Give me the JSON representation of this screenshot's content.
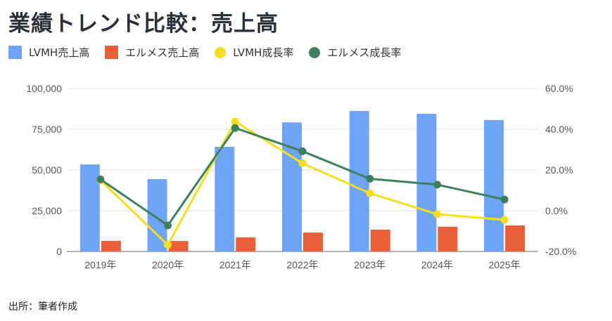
{
  "title": "業績トレンド比較：売上高",
  "source": "出所：筆者作成",
  "chart_data": {
    "type": "bar",
    "title": "業績トレンド比較：売上高",
    "categories": [
      "2019年",
      "2020年",
      "2021年",
      "2022年",
      "2023年",
      "2024年",
      "2025年"
    ],
    "legend_position": "top-left",
    "grid": true,
    "y_left": {
      "range": [
        0,
        100000
      ],
      "ticks": [
        "0",
        "25,000",
        "50,000",
        "75,000",
        "100,000"
      ]
    },
    "y_right": {
      "range": [
        -20,
        60
      ],
      "ticks": [
        "-20.0%",
        "0.0%",
        "20.0%",
        "40.0%",
        "60.0%"
      ]
    },
    "series": [
      {
        "name": "LVMH売上高",
        "type": "bar",
        "axis": "left",
        "color": "#6fa5f8",
        "values": [
          53400,
          44400,
          64200,
          79200,
          86200,
          84500,
          80600
        ]
      },
      {
        "name": "エルメス売上高",
        "type": "bar",
        "axis": "left",
        "color": "#e9603a",
        "values": [
          6500,
          6400,
          8600,
          11600,
          13400,
          15200,
          16000
        ]
      },
      {
        "name": "LVMH成長率",
        "type": "line",
        "axis": "right",
        "color": "#f5dd24",
        "values": [
          15.0,
          -16.8,
          43.8,
          23.3,
          8.6,
          -1.7,
          -4.5
        ]
      },
      {
        "name": "エルメス成長率",
        "type": "line",
        "axis": "right",
        "color": "#3f7f5f",
        "values": [
          15.4,
          -7.2,
          40.6,
          29.2,
          15.7,
          12.8,
          5.5
        ]
      }
    ]
  }
}
